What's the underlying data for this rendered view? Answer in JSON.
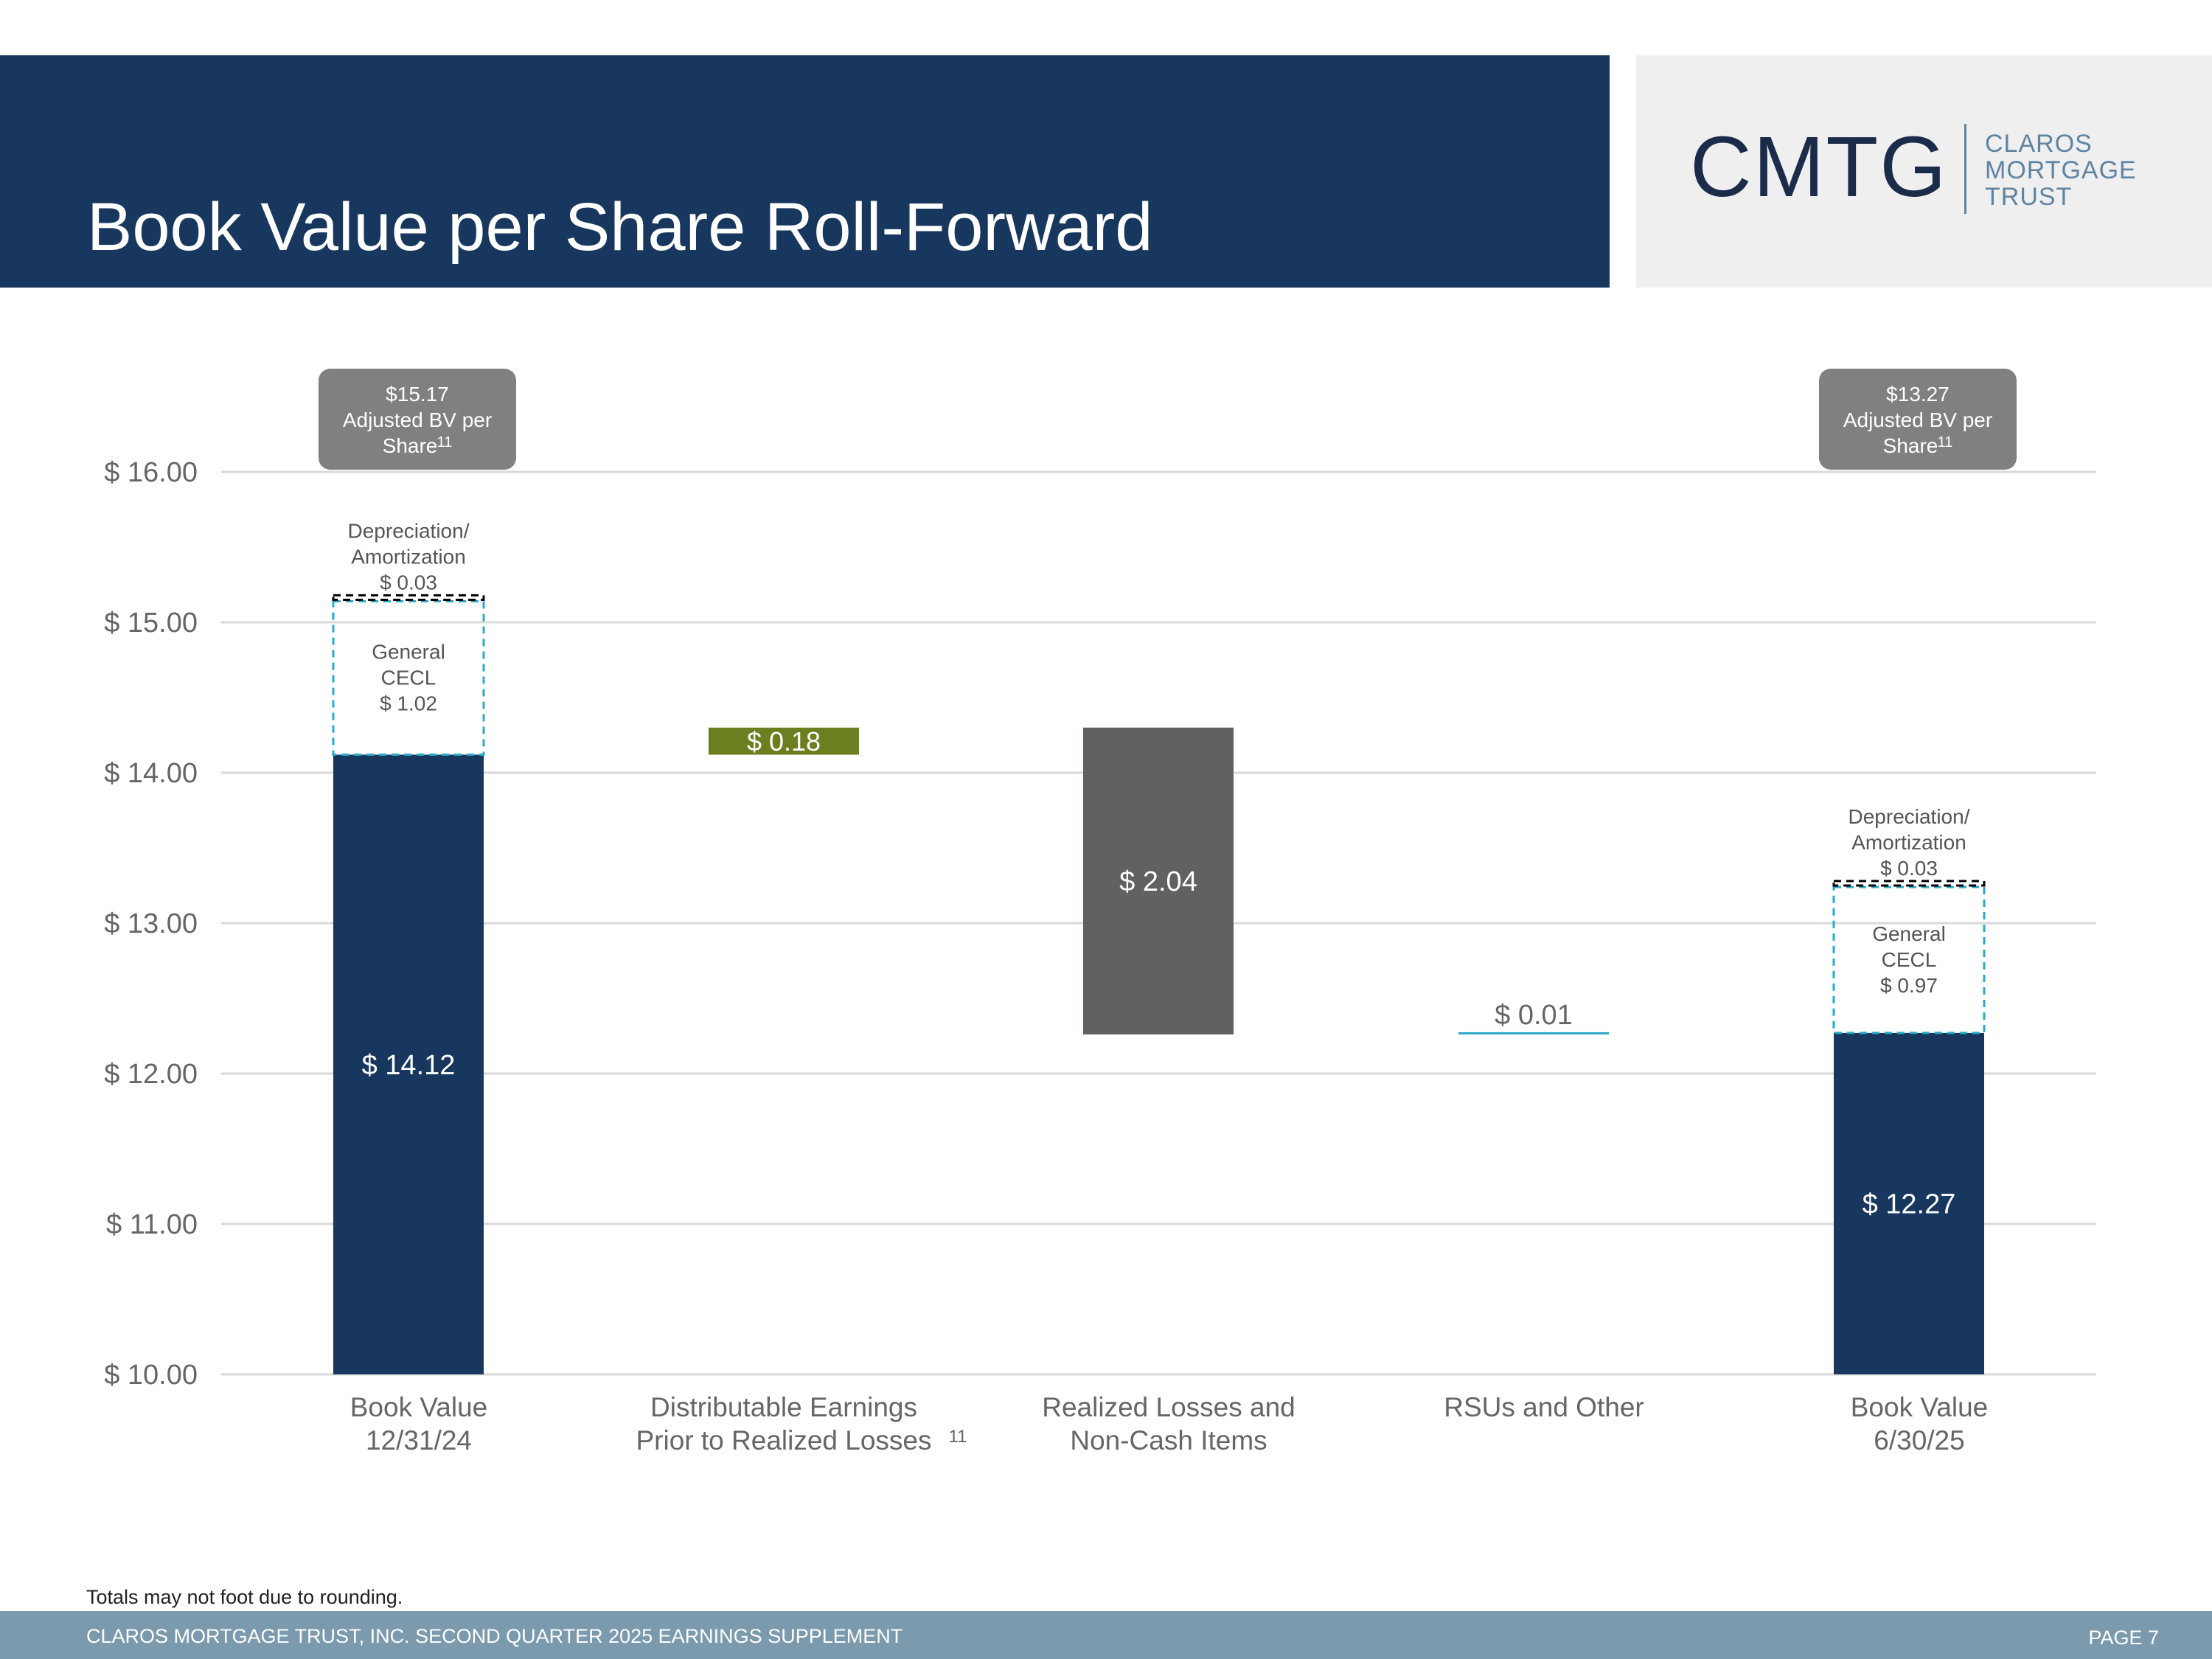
{
  "title": "Book Value per Share Roll-Forward",
  "logo": {
    "mark": "CMTG",
    "words": [
      "CLAROS",
      "MORTGAGE",
      "TRUST"
    ]
  },
  "footnote": "Totals may not foot due to rounding.",
  "footer": {
    "left": "CLAROS MORTGAGE TRUST, INC. SECOND QUARTER 2025 EARNINGS SUPPLEMENT",
    "right": "PAGE 7"
  },
  "colors": {
    "navy": "#17375e",
    "olive": "#6b7f20",
    "gray_bar": "#5f6163",
    "teal": "#2aaac8",
    "badge": "#808080",
    "axis_text": "#666666",
    "grid": "#d9d9d9"
  },
  "chart_data": {
    "type": "bar",
    "subtype": "waterfall",
    "title": "Book Value per Share Roll-Forward",
    "y_tick_labels": [
      "$ 10.00",
      "$ 11.00",
      "$ 12.00",
      "$ 13.00",
      "$ 14.00",
      "$ 15.00",
      "$ 16.00"
    ],
    "ylim": [
      10,
      16
    ],
    "grid": true,
    "categories": [
      {
        "lines": [
          "Book Value",
          "12/31/24"
        ],
        "sup": ""
      },
      {
        "lines": [
          "Distributable Earnings",
          "Prior to Realized Losses"
        ],
        "sup": "11"
      },
      {
        "lines": [
          "Realized Losses and",
          "Non-Cash Items"
        ],
        "sup": ""
      },
      {
        "lines": [
          "RSUs and Other"
        ],
        "sup": ""
      },
      {
        "lines": [
          "Book Value",
          "6/30/25"
        ],
        "sup": ""
      }
    ],
    "bars": [
      {
        "category": 0,
        "kind": "total",
        "start": 10.0,
        "end": 14.12,
        "label": "$ 14.12"
      },
      {
        "category": 1,
        "kind": "increase",
        "start": 14.12,
        "end": 14.3,
        "label": "$ 0.18"
      },
      {
        "category": 2,
        "kind": "decrease",
        "start": 14.3,
        "end": 12.26,
        "label": "$ 2.04"
      },
      {
        "category": 3,
        "kind": "increase",
        "start": 12.26,
        "end": 12.27,
        "label": "$ 0.01"
      },
      {
        "category": 4,
        "kind": "total",
        "start": 10.0,
        "end": 12.27,
        "label": "$ 12.27"
      }
    ],
    "adjustments": [
      {
        "category": 0,
        "start": 14.12,
        "end": 15.14,
        "lines": [
          "General",
          "CECL",
          "$ 1.02"
        ],
        "value": 1.02
      },
      {
        "category": 0,
        "start": 15.14,
        "end": 15.17,
        "lines": [
          "Depreciation/",
          "Amortization",
          "$ 0.03"
        ],
        "value": 0.03
      },
      {
        "category": 4,
        "start": 12.27,
        "end": 13.24,
        "lines": [
          "General",
          "CECL",
          "$ 0.97"
        ],
        "value": 0.97
      },
      {
        "category": 4,
        "start": 13.24,
        "end": 13.27,
        "lines": [
          "Depreciation/",
          "Amortization",
          "$ 0.03"
        ],
        "value": 0.03
      }
    ],
    "badges": [
      {
        "category": 0,
        "lines": [
          "$15.17",
          "Adjusted BV per",
          "Share"
        ],
        "sup": "11",
        "value": 15.17
      },
      {
        "category": 4,
        "lines": [
          "$13.27",
          "Adjusted BV per",
          "Share"
        ],
        "sup": "11",
        "value": 13.27
      }
    ]
  }
}
